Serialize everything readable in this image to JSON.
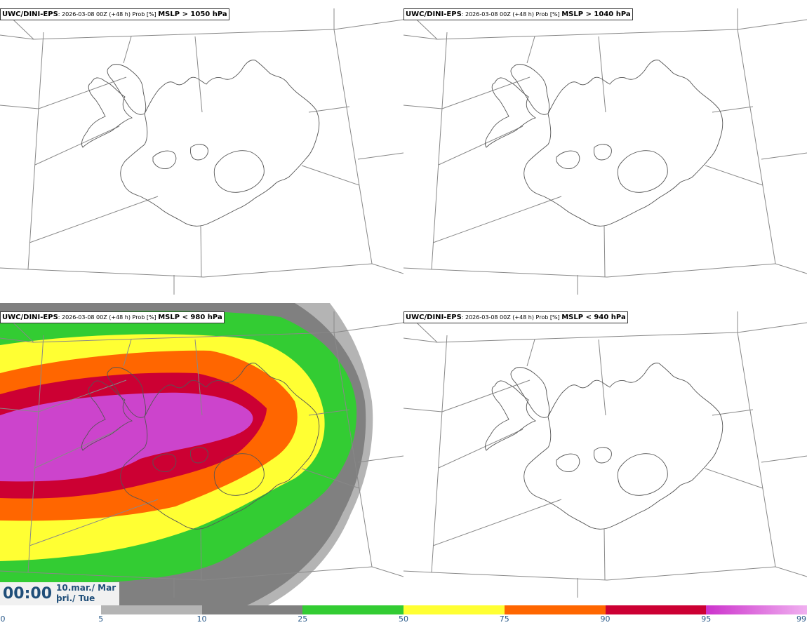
{
  "panels": [
    {
      "source": "UWC/DINI-EPS",
      "meta": ": 2026-03-08 00Z (+48 h) Prob [%] ",
      "variable": "MSLP > 1050 hPa"
    },
    {
      "source": "UWC/DINI-EPS",
      "meta": ": 2026-03-08 00Z (+48 h) Prob [%] ",
      "variable": "MSLP > 1040 hPa"
    },
    {
      "source": "UWC/DINI-EPS",
      "meta": ": 2026-03-08 00Z (+48 h) Prob [%] ",
      "variable": "MSLP < 980 hPa"
    },
    {
      "source": "UWC/DINI-EPS",
      "meta": ": 2026-03-08 00Z (+48 h) Prob [%] ",
      "variable": "MSLP < 940 hPa"
    }
  ],
  "valid_time": {
    "clock": "00:00",
    "date_line1": "10.mar./ Mar",
    "date_line2": "þri./ Tue"
  },
  "colorbar": {
    "ticks": [
      "0",
      "5",
      "10",
      "25",
      "50",
      "75",
      "90",
      "95",
      "99"
    ],
    "colors": [
      "#ffffff",
      "#b4b4b4",
      "#808080",
      "#33cc33",
      "#ffff33",
      "#ff6600",
      "#cc0033",
      "#cc33cc",
      "#f0b0f0"
    ]
  },
  "contour_colors": {
    "p5": "#b4b4b4",
    "p10": "#808080",
    "p25": "#33cc33",
    "p50": "#ffff33",
    "p75": "#ff6600",
    "p90": "#cc0033",
    "p95": "#cc44cc"
  }
}
